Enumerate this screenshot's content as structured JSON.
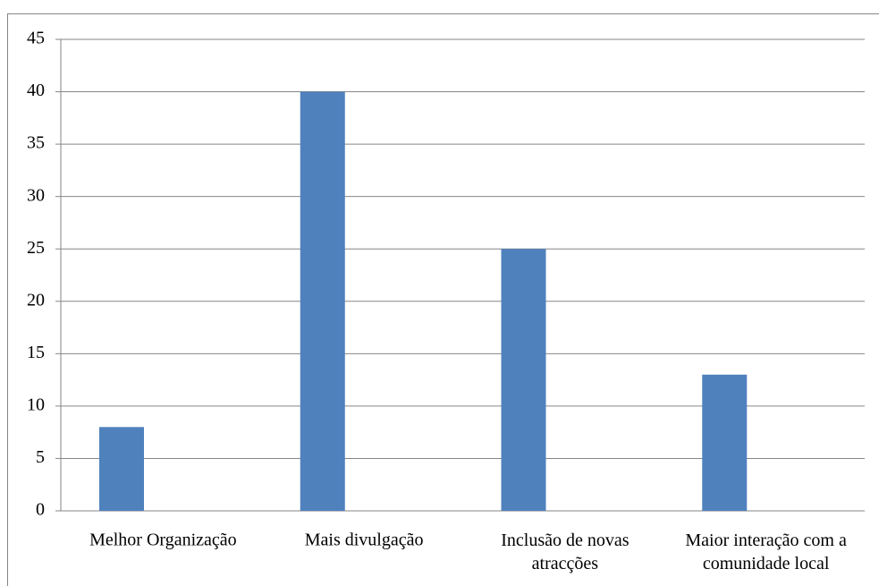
{
  "chart_data": {
    "type": "bar",
    "categories": [
      "Melhor Organização",
      "Mais  divulgação",
      "Inclusão de novas atracções",
      "Maior interação com a comunidade local"
    ],
    "values": [
      8,
      40,
      25,
      13
    ],
    "color": "#4f81bd",
    "ylim": [
      0,
      45
    ],
    "yticks": [
      0,
      5,
      10,
      15,
      20,
      25,
      30,
      35,
      40,
      45
    ],
    "grid": true
  }
}
